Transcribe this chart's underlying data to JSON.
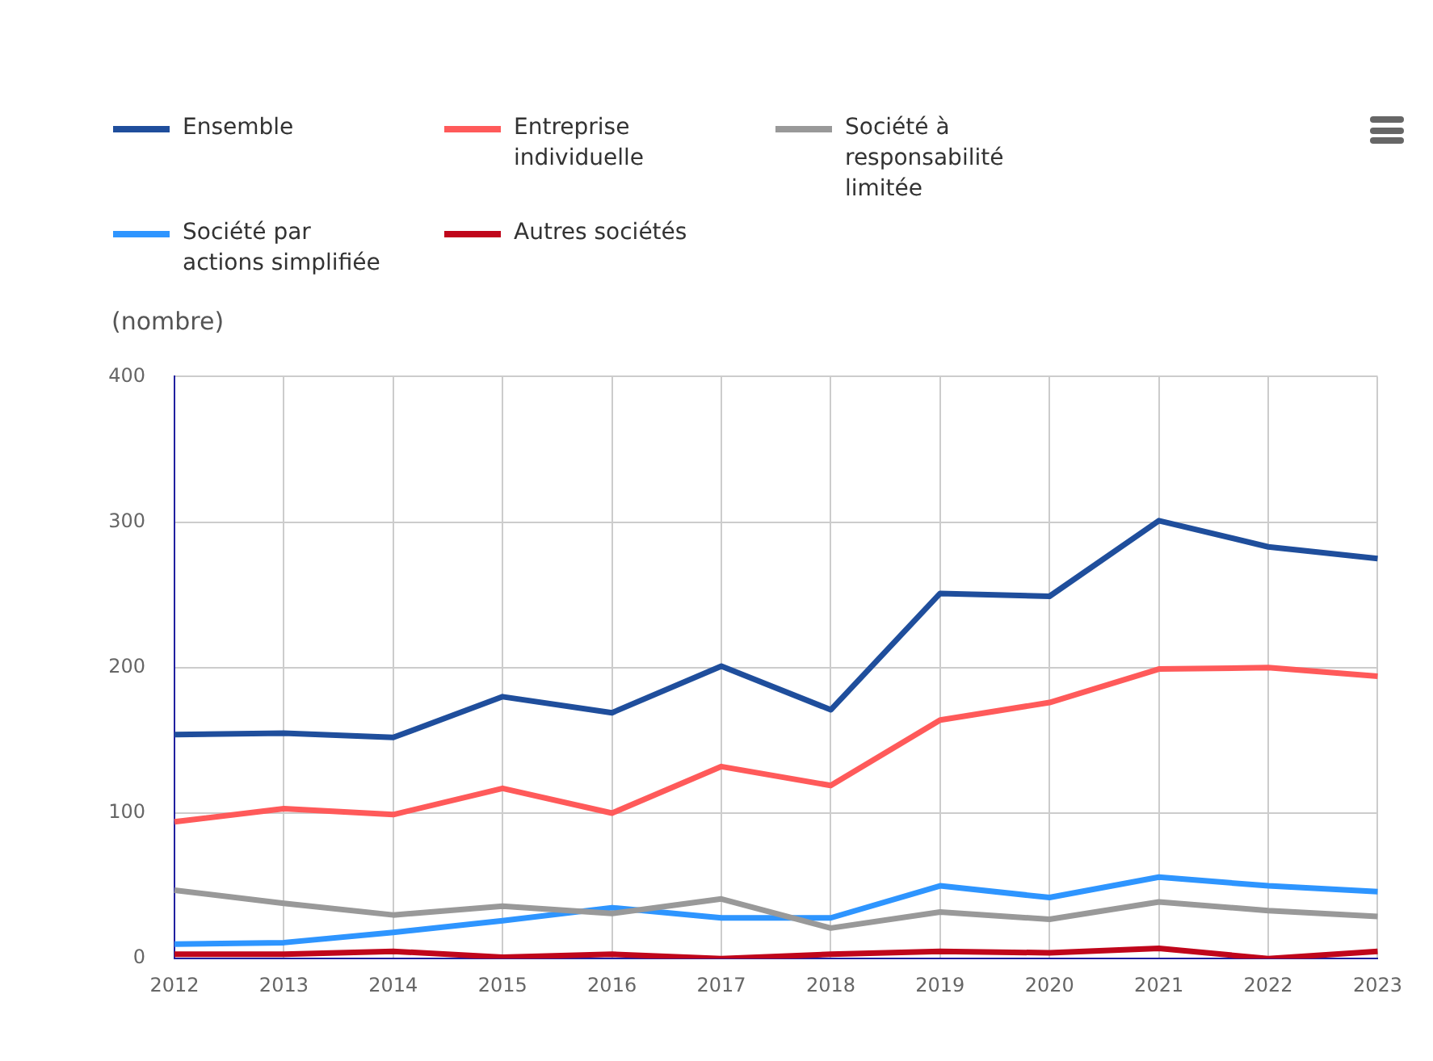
{
  "chart_data": {
    "type": "line",
    "ylabel": "(nombre)",
    "categories": [
      "2012",
      "2013",
      "2014",
      "2015",
      "2016",
      "2017",
      "2018",
      "2019",
      "2020",
      "2021",
      "2022",
      "2023"
    ],
    "series": [
      {
        "name": "Ensemble",
        "color": "#1f4e9c",
        "values": [
          154,
          155,
          152,
          180,
          169,
          201,
          171,
          251,
          249,
          301,
          283,
          275
        ]
      },
      {
        "name": "Entreprise individuelle",
        "color": "#ff5a5a",
        "values": [
          94,
          103,
          99,
          117,
          100,
          132,
          119,
          164,
          176,
          199,
          200,
          194
        ]
      },
      {
        "name": "Société à responsabilité limitée",
        "color": "#999999",
        "values": [
          47,
          38,
          30,
          36,
          31,
          41,
          21,
          32,
          27,
          39,
          33,
          29
        ]
      },
      {
        "name": "Société par actions simplifiée",
        "color": "#2e95ff",
        "values": [
          10,
          11,
          18,
          26,
          35,
          28,
          28,
          50,
          42,
          56,
          50,
          46
        ]
      },
      {
        "name": "Autres sociétés",
        "color": "#c0061b",
        "values": [
          3,
          3,
          5,
          1,
          3,
          0,
          3,
          5,
          4,
          7,
          0,
          5
        ]
      }
    ],
    "ylim": [
      0,
      400
    ],
    "yticks": [
      0,
      100,
      200,
      300,
      400
    ],
    "grid": true,
    "legend": "top",
    "marker": "none"
  }
}
